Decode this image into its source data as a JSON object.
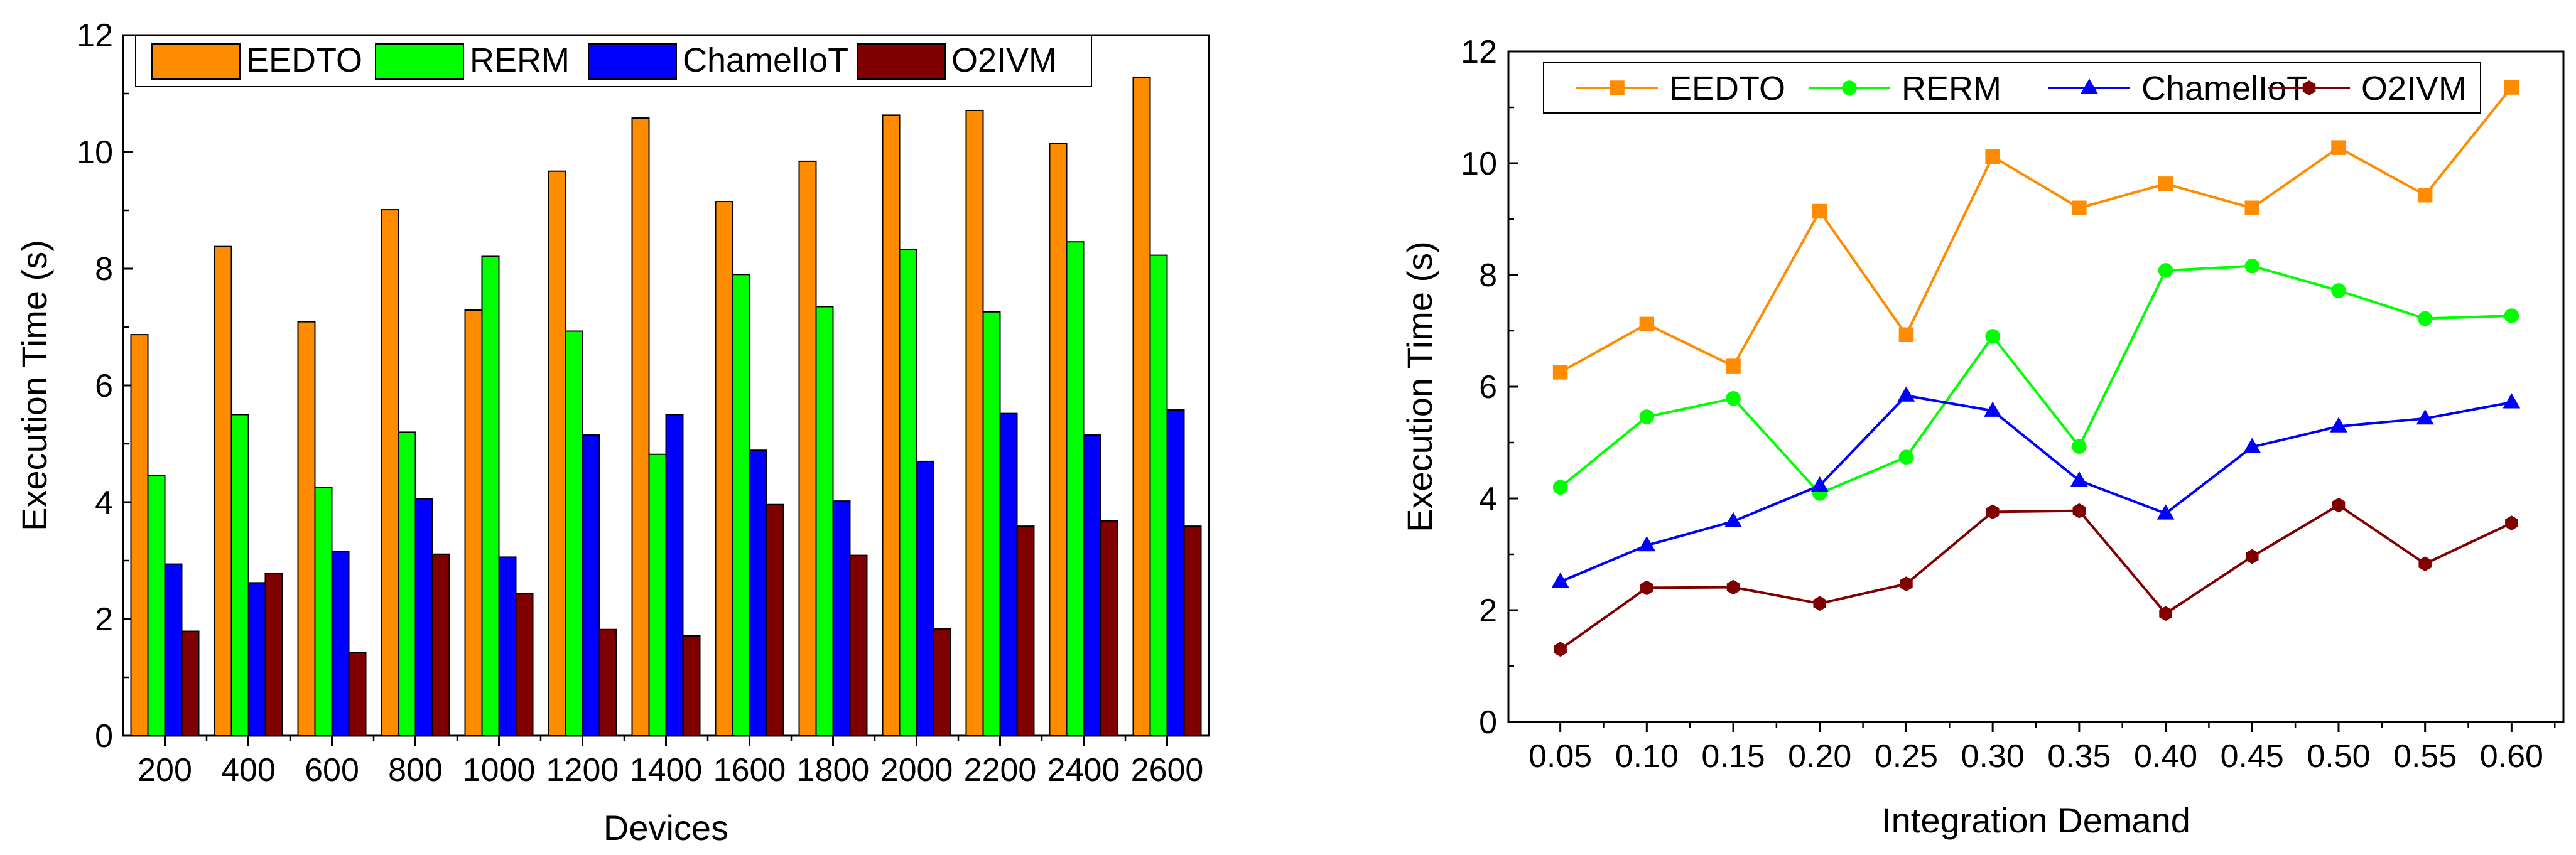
{
  "chart_data": [
    {
      "type": "bar",
      "title": "",
      "xlabel": "Devices",
      "ylabel": "Execution Time (s)",
      "ylim": [
        0,
        12
      ],
      "yticks": [
        "0",
        "2",
        "4",
        "6",
        "8",
        "10",
        "12"
      ],
      "categories": [
        "200",
        "400",
        "600",
        "800",
        "1000",
        "1200",
        "1400",
        "1600",
        "1800",
        "2000",
        "2200",
        "2400",
        "2600"
      ],
      "legend_position": "top",
      "series": [
        {
          "name": "EEDTO",
          "color": "#FF8C00",
          "values": [
            6.87,
            8.38,
            7.09,
            9.01,
            7.29,
            9.67,
            10.58,
            9.15,
            9.84,
            10.63,
            10.71,
            10.14,
            11.28
          ]
        },
        {
          "name": "RERM",
          "color": "#00FF00",
          "values": [
            4.46,
            5.5,
            4.25,
            5.2,
            8.21,
            6.93,
            4.82,
            7.9,
            7.35,
            8.33,
            7.26,
            8.46,
            8.23
          ]
        },
        {
          "name": "ChamelIoT",
          "color": "#0000FF",
          "values": [
            2.94,
            2.62,
            3.16,
            4.06,
            3.06,
            5.15,
            5.5,
            4.89,
            4.02,
            4.7,
            5.52,
            5.15,
            5.58
          ]
        },
        {
          "name": "O2IVM",
          "color": "#800000",
          "values": [
            1.79,
            2.78,
            1.42,
            3.11,
            2.43,
            1.82,
            1.71,
            3.96,
            3.09,
            1.83,
            3.59,
            3.68,
            3.59
          ]
        }
      ]
    },
    {
      "type": "line",
      "title": "",
      "xlabel": "Integration Demand",
      "ylabel": "Execution Time (s)",
      "ylim": [
        0,
        12
      ],
      "yticks": [
        "0",
        "2",
        "4",
        "6",
        "8",
        "10",
        "12"
      ],
      "xlim": [
        0.02,
        0.63
      ],
      "x": [
        0.05,
        0.1,
        0.15,
        0.2,
        0.25,
        0.3,
        0.35,
        0.4,
        0.45,
        0.5,
        0.55,
        0.6
      ],
      "xtick_labels": [
        "0.05",
        "0.10",
        "0.15",
        "0.20",
        "0.25",
        "0.30",
        "0.35",
        "0.40",
        "0.45",
        "0.50",
        "0.55",
        "0.60"
      ],
      "legend_position": "top",
      "series": [
        {
          "name": "EEDTO",
          "color": "#FF8C00",
          "marker": "square",
          "values": [
            6.26,
            7.12,
            6.37,
            9.14,
            6.93,
            10.12,
            9.2,
            9.63,
            9.2,
            10.28,
            9.43,
            11.36
          ]
        },
        {
          "name": "RERM",
          "color": "#00FF00",
          "marker": "circle",
          "values": [
            4.2,
            5.46,
            5.79,
            4.09,
            4.74,
            6.9,
            4.93,
            8.08,
            8.16,
            7.72,
            7.22,
            7.27
          ]
        },
        {
          "name": "ChamelIoT",
          "color": "#0000FF",
          "marker": "triangle",
          "values": [
            2.51,
            3.16,
            3.59,
            4.23,
            5.84,
            5.57,
            4.32,
            3.73,
            4.92,
            5.29,
            5.43,
            5.72
          ]
        },
        {
          "name": "O2IVM",
          "color": "#800000",
          "marker": "hexagon",
          "values": [
            1.3,
            2.4,
            2.41,
            2.12,
            2.47,
            3.76,
            3.78,
            1.94,
            2.96,
            3.88,
            2.83,
            3.56
          ]
        }
      ]
    }
  ]
}
